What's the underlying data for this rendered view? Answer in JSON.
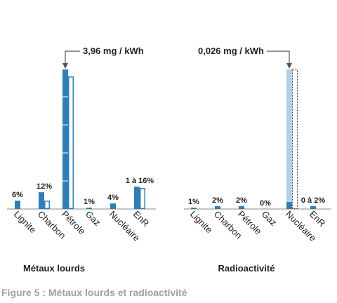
{
  "caption": "Figure 5 : Métaux lourds et radioactivité",
  "colors": {
    "solid_blue": "#2f7eb6",
    "light_blue": "#b4d0e8",
    "axis": "#8a8a8a",
    "annotation": "#555555",
    "caption": "#a0a0a0"
  },
  "chart_data": [
    {
      "type": "bar",
      "title": "Métaux lourds",
      "unit": "%",
      "annotation": "3,96 mg / kWh",
      "ylim": [
        0,
        100
      ],
      "categories": [
        "Lignite",
        "Charbon",
        "Pétrole",
        "Gaz",
        "Nucléaire",
        "EnR"
      ],
      "labels": [
        "6%",
        "12%",
        "",
        "1%",
        "4%",
        "1 à 16%"
      ],
      "series": [
        {
          "role": "solid",
          "values": [
            6,
            12,
            100,
            1,
            4,
            16
          ]
        },
        {
          "role": "outline-range",
          "values": [
            null,
            6,
            95,
            null,
            null,
            15
          ]
        }
      ]
    },
    {
      "type": "bar",
      "title": "Radioactivité",
      "unit": "%",
      "annotation": "0,026 mg / kWh",
      "ylim": [
        0,
        100
      ],
      "categories": [
        "Lignite",
        "Charbon",
        "Pétrole",
        "Gaz",
        "Nucléaire",
        "EnR"
      ],
      "labels": [
        "1%",
        "2%",
        "2%",
        "0%",
        "",
        "0 à 2%"
      ],
      "series": [
        {
          "role": "solid",
          "values": [
            1,
            2,
            2,
            0,
            5,
            2
          ]
        },
        {
          "role": "light",
          "values": [
            null,
            null,
            null,
            null,
            95,
            null
          ]
        },
        {
          "role": "dotted-range",
          "values": [
            null,
            null,
            null,
            null,
            100,
            null
          ]
        }
      ]
    }
  ]
}
